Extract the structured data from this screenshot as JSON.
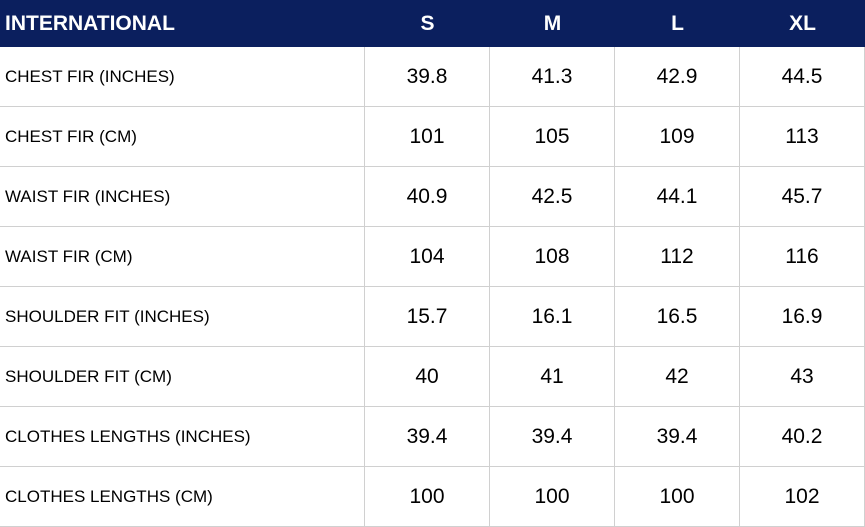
{
  "table": {
    "header": [
      "INTERNATIONAL",
      "S",
      "M",
      "L",
      "XL"
    ],
    "rows": [
      [
        "CHEST FIR (INCHES)",
        "39.8",
        "41.3",
        "42.9",
        "44.5"
      ],
      [
        "CHEST FIR (CM)",
        "101",
        "105",
        "109",
        "113"
      ],
      [
        "WAIST FIR (INCHES)",
        "40.9",
        "42.5",
        "44.1",
        "45.7"
      ],
      [
        "WAIST FIR (CM)",
        "104",
        "108",
        "112",
        "116"
      ],
      [
        "SHOULDER FIT (INCHES)",
        "15.7",
        "16.1",
        "16.5",
        "16.9"
      ],
      [
        "SHOULDER FIT (CM)",
        "40",
        "41",
        "42",
        "43"
      ],
      [
        "CLOTHES LENGTHS (INCHES)",
        "39.4",
        "39.4",
        "39.4",
        "40.2"
      ],
      [
        "CLOTHES LENGTHS (CM)",
        "100",
        "100",
        "100",
        "102"
      ]
    ]
  }
}
